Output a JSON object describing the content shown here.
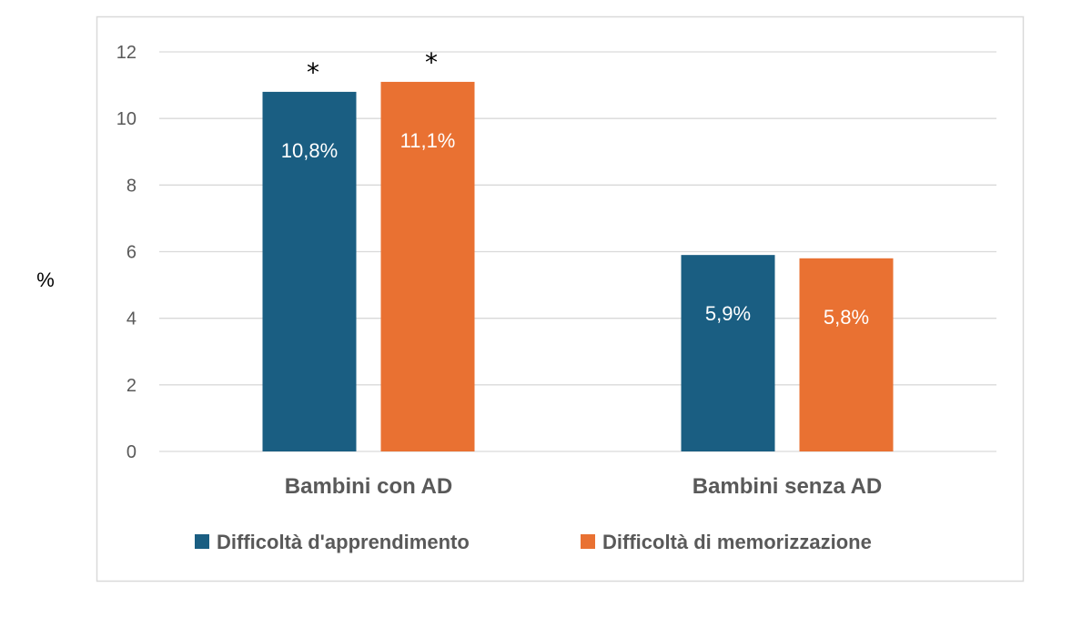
{
  "chart_data": {
    "type": "bar",
    "title": "",
    "xlabel": "",
    "ylabel": "%",
    "ylim": [
      0,
      12
    ],
    "yticks": [
      "0",
      "2",
      "4",
      "6",
      "8",
      "10",
      "12"
    ],
    "grid": true,
    "legend_position": "bottom",
    "categories": [
      "Bambini con AD",
      "Bambini senza AD"
    ],
    "series": [
      {
        "name": "Difficoltà d'apprendimento",
        "color": "#1A5E82",
        "values": [
          10.8,
          5.9
        ],
        "labels": [
          "10,8%",
          "5,9%"
        ],
        "markers": [
          "*",
          ""
        ]
      },
      {
        "name": "Difficoltà di memorizzazione",
        "color": "#E97132",
        "values": [
          11.1,
          5.8
        ],
        "labels": [
          "11,1%",
          "5,8%"
        ],
        "markers": [
          "*",
          ""
        ]
      }
    ]
  }
}
